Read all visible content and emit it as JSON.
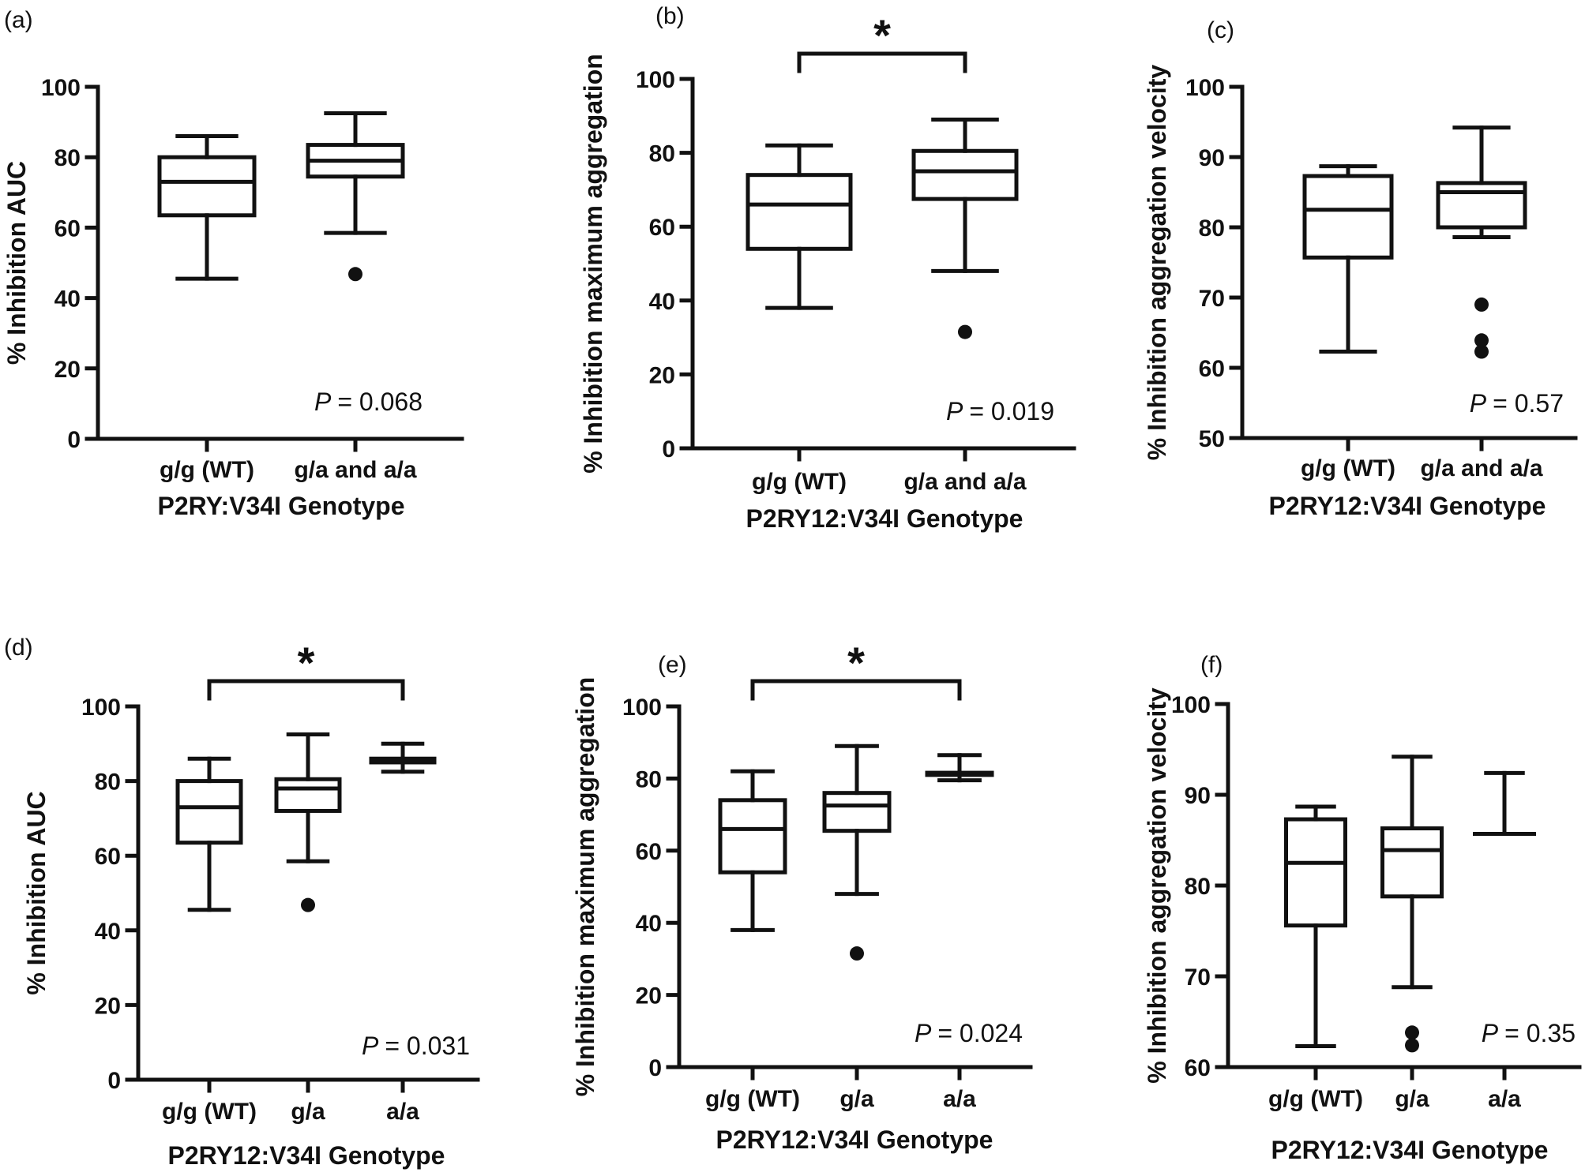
{
  "chart_data": [
    {
      "panel_label": "(a)",
      "type": "box",
      "xlabel": "P2RY:V34I Genotype",
      "ylabel": "% Inhibition AUC",
      "ylim": [
        0,
        100
      ],
      "yticks": [
        0,
        20,
        40,
        60,
        80,
        100
      ],
      "categories": [
        "g/g (WT)",
        "g/a and a/a"
      ],
      "boxes": [
        {
          "min": 45.5,
          "q1": 63.5,
          "median": 73,
          "q3": 80,
          "max": 86,
          "outliers": []
        },
        {
          "min": 58.5,
          "q1": 74.5,
          "median": 79,
          "q3": 83.5,
          "max": 92.5,
          "outliers": [
            46.8
          ]
        }
      ],
      "p_label": "P",
      "p_value": "= 0.068",
      "significance": null
    },
    {
      "panel_label": "(b)",
      "type": "box",
      "xlabel": "P2RY12:V34I Genotype",
      "ylabel": "% Inhibition maximum aggregation",
      "ylim": [
        0,
        100
      ],
      "yticks": [
        0,
        20,
        40,
        60,
        80,
        100
      ],
      "categories": [
        "g/g (WT)",
        "g/a and a/a"
      ],
      "boxes": [
        {
          "min": 38,
          "q1": 54,
          "median": 66,
          "q3": 74,
          "max": 82,
          "outliers": []
        },
        {
          "min": 48,
          "q1": 67.5,
          "median": 75,
          "q3": 80.5,
          "max": 89,
          "outliers": [
            31.5
          ]
        }
      ],
      "p_label": "P",
      "p_value": "= 0.019",
      "significance": {
        "from": 0,
        "to": 1,
        "label": "*"
      }
    },
    {
      "panel_label": "(c)",
      "type": "box",
      "xlabel": "P2RY12:V34I Genotype",
      "ylabel": "% Inhibition aggregation velocity",
      "ylim": [
        50,
        100
      ],
      "yticks": [
        50,
        60,
        70,
        80,
        90,
        100
      ],
      "categories": [
        "g/g (WT)",
        "g/a and a/a"
      ],
      "boxes": [
        {
          "min": 62.3,
          "q1": 75.7,
          "median": 82.5,
          "q3": 87.3,
          "max": 88.7,
          "outliers": []
        },
        {
          "min": 78.6,
          "q1": 80,
          "median": 85,
          "q3": 86.3,
          "max": 94.2,
          "outliers": [
            69,
            62.3,
            63.9
          ]
        }
      ],
      "p_label": "P",
      "p_value": "= 0.57",
      "significance": null
    },
    {
      "panel_label": "(d)",
      "type": "box",
      "xlabel": "P2RY12:V34I Genotype",
      "ylabel": "% Inhibition AUC",
      "ylim": [
        0,
        100
      ],
      "yticks": [
        0,
        20,
        40,
        60,
        80,
        100
      ],
      "categories": [
        "g/g (WT)",
        "g/a",
        "a/a"
      ],
      "boxes": [
        {
          "min": 45.5,
          "q1": 63.5,
          "median": 73,
          "q3": 80,
          "max": 86,
          "outliers": []
        },
        {
          "min": 58.5,
          "q1": 72,
          "median": 78,
          "q3": 80.5,
          "max": 92.5,
          "outliers": [
            46.8
          ]
        },
        {
          "min": 82.5,
          "q1": 85,
          "median": 85.5,
          "q3": 86,
          "max": 90,
          "outliers": []
        }
      ],
      "p_label": "P",
      "p_value": "= 0.031",
      "significance": {
        "from": 0,
        "to": 2,
        "label": "*"
      }
    },
    {
      "panel_label": "(e)",
      "type": "box",
      "xlabel": "P2RY12:V34I Genotype",
      "ylabel": "% Inhibition maximum aggregation",
      "ylim": [
        0,
        100
      ],
      "yticks": [
        0,
        20,
        40,
        60,
        80,
        100
      ],
      "categories": [
        "g/g (WT)",
        "g/a",
        "a/a"
      ],
      "boxes": [
        {
          "min": 38,
          "q1": 54,
          "median": 66,
          "q3": 74,
          "max": 82,
          "outliers": []
        },
        {
          "min": 48,
          "q1": 65.5,
          "median": 72.5,
          "q3": 76,
          "max": 89,
          "outliers": [
            31.5
          ]
        },
        {
          "min": 79.5,
          "q1": 81,
          "median": 81.3,
          "q3": 81.6,
          "max": 86.5,
          "outliers": []
        }
      ],
      "p_label": "P",
      "p_value": "= 0.024",
      "significance": {
        "from": 0,
        "to": 2,
        "label": "*"
      }
    },
    {
      "panel_label": "(f)",
      "type": "box",
      "xlabel": "P2RY12:V34I Genotype",
      "ylabel": "% Inhibition aggregation velocity",
      "ylim": [
        60,
        100
      ],
      "yticks": [
        60,
        70,
        80,
        90,
        100
      ],
      "categories": [
        "g/g (WT)",
        "g/a",
        "a/a"
      ],
      "boxes": [
        {
          "min": 62.3,
          "q1": 75.6,
          "median": 82.5,
          "q3": 87.3,
          "max": 88.7,
          "outliers": []
        },
        {
          "min": 68.8,
          "q1": 78.8,
          "median": 83.9,
          "q3": 86.3,
          "max": 94.2,
          "outliers": [
            63.8,
            62.4
          ]
        },
        {
          "min": 85.7,
          "q1": 85.7,
          "median": 85.7,
          "q3": 85.7,
          "max": 92.4,
          "outliers": []
        }
      ],
      "p_label": "P",
      "p_value": "= 0.35",
      "significance": null
    }
  ]
}
